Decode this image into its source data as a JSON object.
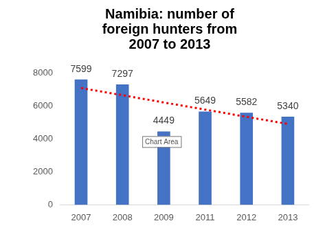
{
  "chart_data": {
    "type": "bar",
    "title": [
      "Namibia: number of",
      "foreign hunters from",
      "2007 to 2013"
    ],
    "categories": [
      "2007",
      "2008",
      "2009",
      "2011",
      "2012",
      "2013"
    ],
    "values": [
      7599,
      7297,
      4449,
      5649,
      5582,
      5340
    ],
    "color": "#4472c4",
    "ylim": [
      0,
      8000
    ],
    "yticks": [
      0,
      2000,
      4000,
      6000,
      8000
    ],
    "grid": false,
    "data_labels": true,
    "trendline": {
      "values": [
        7075,
        6640,
        6200,
        5770,
        5330,
        4900
      ],
      "color": "#ff0000",
      "line_style": "dotted"
    },
    "annotations": [
      {
        "text": "Chart Area"
      }
    ]
  }
}
